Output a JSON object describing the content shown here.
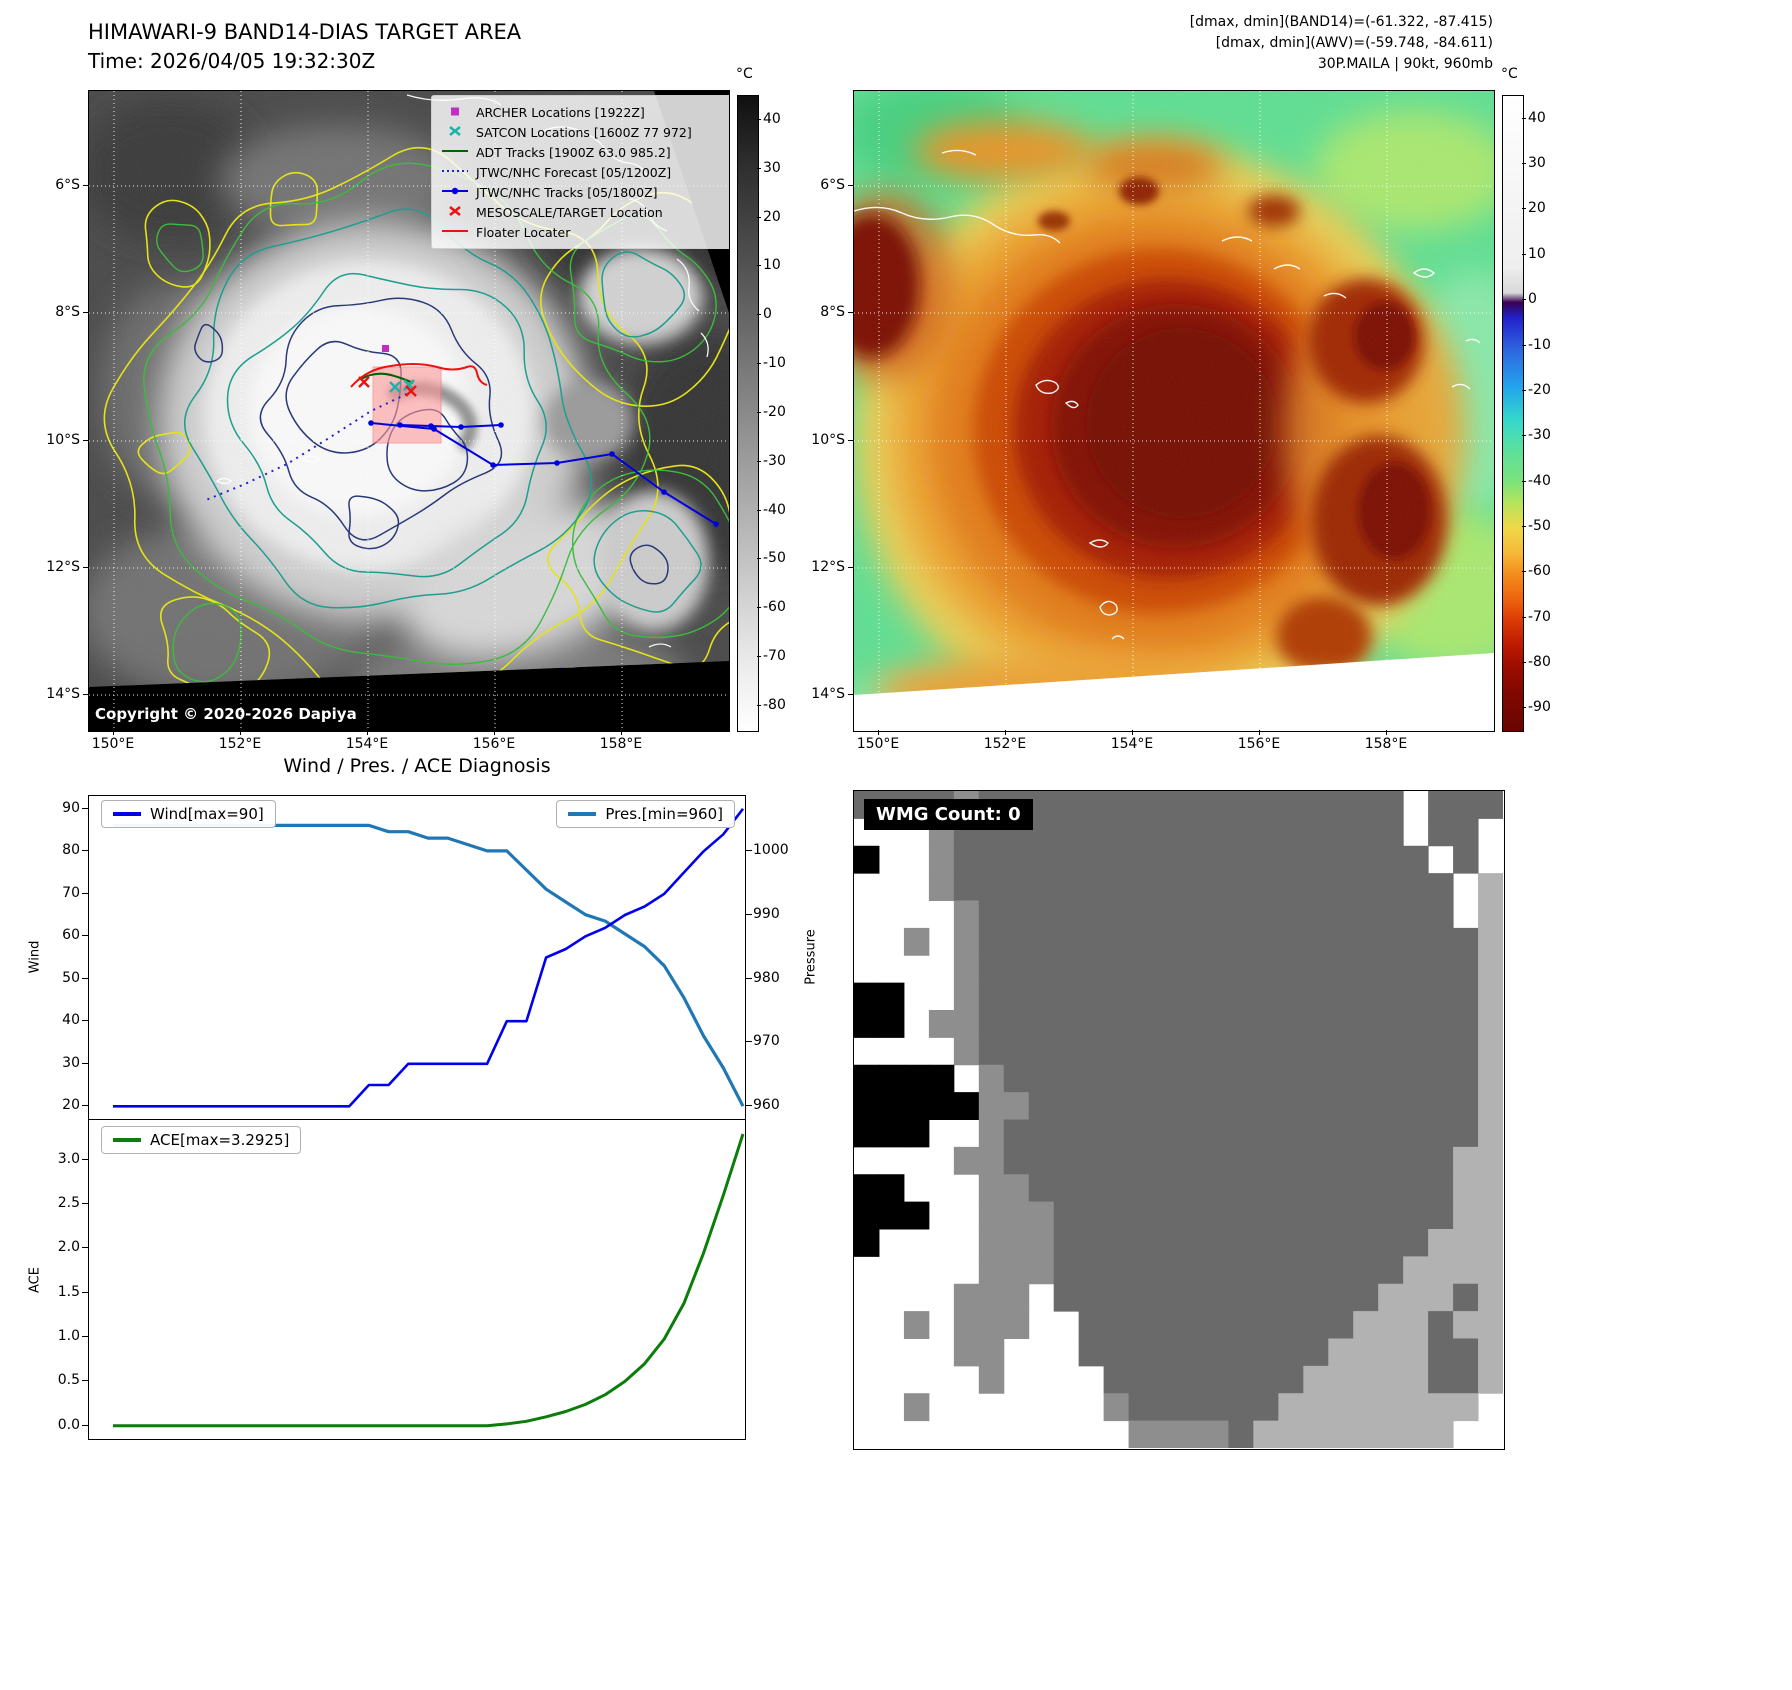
{
  "band14": {
    "title": "HIMAWARI-9 BAND14-DIAS TARGET AREA",
    "subtitle": "Time: 2026/04/05 19:32:30Z",
    "copyright": "Copyright © 2020-2026 Dapiya",
    "x_ticks": [
      "150°E",
      "152°E",
      "154°E",
      "156°E",
      "158°E"
    ],
    "y_ticks": [
      "6°S",
      "8°S",
      "10°S",
      "12°S",
      "14°S"
    ],
    "colorbar": {
      "unit": "°C",
      "ticks": [
        "40",
        "30",
        "20",
        "10",
        "0",
        "-10",
        "-20",
        "-30",
        "-40",
        "-50",
        "-60",
        "-70",
        "-80"
      ]
    },
    "legend": [
      {
        "label": "ARCHER Locations [1922Z]",
        "type": "square",
        "color": "#c030c0"
      },
      {
        "label": "SATCON Locations [1600Z 77 972]",
        "type": "x",
        "color": "#20b2aa"
      },
      {
        "label": "ADT Tracks [1900Z 63.0 985.2]",
        "type": "line",
        "color": "#006400"
      },
      {
        "label": "JTWC/NHC Forecast [05/1200Z]",
        "type": "dotted",
        "color": "#2222cc"
      },
      {
        "label": "JTWC/NHC Tracks [05/1800Z]",
        "type": "line-dot",
        "color": "#0000dd"
      },
      {
        "label": "MESOSCALE/TARGET Location",
        "type": "x",
        "color": "#ee1111"
      },
      {
        "label": "Floater Locater",
        "type": "line",
        "color": "#ee1111"
      }
    ]
  },
  "awv": {
    "header_lines": [
      "[dmax, dmin](BAND14)=(-61.322, -87.415)",
      "[dmax, dmin](AWV)=(-59.748, -84.611)",
      "30P.MAILA | 90kt, 960mb"
    ],
    "x_ticks": [
      "150°E",
      "152°E",
      "154°E",
      "156°E",
      "158°E"
    ],
    "y_ticks": [
      "6°S",
      "8°S",
      "10°S",
      "12°S",
      "14°S"
    ],
    "colorbar": {
      "unit": "°C",
      "ticks": [
        "40",
        "30",
        "20",
        "10",
        "0",
        "-10",
        "-20",
        "-30",
        "-40",
        "-50",
        "-60",
        "-70",
        "-80",
        "-90"
      ]
    }
  },
  "diagnosis": {
    "title": "Wind / Pres. / ACE Diagnosis",
    "wind_label": "Wind",
    "pressure_label": "Pressure",
    "ace_label": "ACE",
    "legend_wind": "Wind[max=90]",
    "legend_pres": "Pres.[min=960]",
    "legend_ace": "ACE[max=3.2925]",
    "wind_ticks": [
      90,
      80,
      70,
      60,
      50,
      40,
      30,
      20
    ],
    "pres_ticks": [
      1000,
      990,
      980,
      970,
      960
    ],
    "ace_ticks": [
      "3.0",
      "2.5",
      "2.0",
      "1.5",
      "1.0",
      "0.5",
      "0.0"
    ]
  },
  "chart_data": [
    {
      "type": "line",
      "title": "Wind / Pres. / ACE Diagnosis",
      "ylabel": "Wind",
      "y2label": "Pressure",
      "ylim": [
        17,
        93
      ],
      "y2lim": [
        958,
        1008.6
      ],
      "grid": false,
      "legend_position": "top-left and top-right",
      "series": [
        {
          "name": "Wind[max=90]",
          "axis": "left",
          "color": "#0000ee",
          "values": [
            20,
            20,
            20,
            20,
            20,
            20,
            20,
            20,
            20,
            20,
            20,
            20,
            20,
            25,
            25,
            30,
            30,
            30,
            30,
            30,
            40,
            40,
            55,
            57,
            60,
            62,
            65,
            67,
            70,
            75,
            80,
            84,
            90
          ]
        },
        {
          "name": "Pres.[min=960]",
          "axis": "right",
          "color": "#1f77b4",
          "values": [
            1004,
            1004,
            1004,
            1004,
            1004,
            1004,
            1004,
            1004,
            1004,
            1004,
            1004,
            1004,
            1004,
            1004,
            1003,
            1003,
            1002,
            1002,
            1001,
            1000,
            1000,
            997,
            994,
            992,
            990,
            989,
            987,
            985,
            982,
            977,
            971,
            966,
            960
          ]
        }
      ]
    },
    {
      "type": "line",
      "ylabel": "ACE",
      "ylim": [
        -0.15,
        3.45
      ],
      "grid": false,
      "legend_position": "top-left",
      "series": [
        {
          "name": "ACE[max=3.2925]",
          "color": "#0a7d0a",
          "values": [
            0,
            0,
            0,
            0,
            0,
            0,
            0,
            0,
            0,
            0,
            0,
            0,
            0,
            0,
            0,
            0,
            0,
            0,
            0,
            0,
            0.02,
            0.05,
            0.1,
            0.16,
            0.24,
            0.35,
            0.5,
            0.7,
            0.98,
            1.38,
            1.95,
            2.6,
            3.2925
          ]
        }
      ]
    }
  ],
  "wmg": {
    "label": "WMG Count: 0",
    "palette": {
      ".": "#ffffff",
      "l": "#b2b2b2",
      "m": "#8e8e8e",
      "d": "#6a6a6a",
      "k": "#000000"
    },
    "grid": [
      "ddddmddddddddddddddddd.ddd",
      "...mdddddddddddddddddd.dd.",
      "k..mddddddddddddddddddd.d.",
      "...mdddddddddddddddddddd.l",
      "....mddddddddddddddddddd.l",
      "..m.mddddddddddddddddddddl",
      "....mddddddddddddddddddddl",
      "kk..mddddddddddddddddddddl",
      "kk.mmddddddddddddddddddddl",
      "....mddddddddddddddddddddl",
      "kkkk.mdddddddddddddddddddl",
      "kkkkkmmddddddddddddddddddl",
      "kkk..mdddddddddddddddddddl",
      "....mmddddddddddddddddddll",
      "kk...mmdddddddddddddddddll",
      "kkk..mmmddddddddddddddddll",
      "k....mmmdddddddddddddddlll",
      ".....mmmddddddddddddddllll",
      "....mmm.dddddddddddddllldl",
      "..m.mmm..dddddddddddllldll",
      "....mm...ddddddddddllllddl",
      ".....m....ddddddddlllllddl",
      "..m.......mddddddllllllll.",
      "...........mmmmdllllllll.."
    ]
  }
}
